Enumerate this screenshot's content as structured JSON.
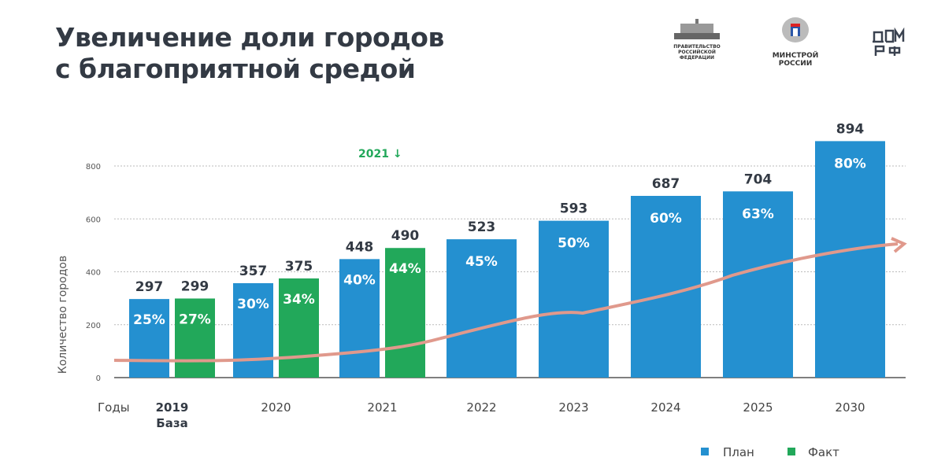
{
  "title_line1": "Увеличение доли городов",
  "title_line2": "с благоприятной средой",
  "logos": {
    "gov": "ПРАВИТЕЛЬСТВО РОССИЙСКОЙ ФЕДЕРАЦИИ",
    "minstroy_1": "МИНСТРОЙ",
    "minstroy_2": "РОССИИ",
    "domrf": "ДОМ РФ"
  },
  "colors": {
    "plan": "#2490d0",
    "fact": "#22a85a",
    "trend": "#e0998c",
    "highlight": "#22a85a"
  },
  "chart_data": {
    "type": "bar",
    "ylabel": "Количество городов",
    "xlabel": "Годы",
    "ylim": [
      0,
      800
    ],
    "yticks": [
      0,
      200,
      400,
      600,
      800
    ],
    "grid": true,
    "legend_position": "bottom-right",
    "annotation": "2021 ↓",
    "categories": [
      {
        "label": "2019",
        "sublabel": "База",
        "bold": true,
        "plan": 297,
        "plan_pct": "25%",
        "fact": 299,
        "fact_pct": "27%"
      },
      {
        "label": "2020",
        "plan": 357,
        "plan_pct": "30%",
        "fact": 375,
        "fact_pct": "34%"
      },
      {
        "label": "2021",
        "plan": 448,
        "plan_pct": "40%",
        "fact": 490,
        "fact_pct": "44%"
      },
      {
        "label": "2022",
        "plan": 523,
        "plan_pct": "45%"
      },
      {
        "label": "2023",
        "plan": 593,
        "plan_pct": "50%"
      },
      {
        "label": "2024",
        "plan": 687,
        "plan_pct": "60%"
      },
      {
        "label": "2025",
        "plan": 704,
        "plan_pct": "63%"
      },
      {
        "label": "2030",
        "plan": 894,
        "plan_pct": "80%"
      }
    ],
    "series": [
      {
        "name": "План",
        "key": "plan"
      },
      {
        "name": "Факт",
        "key": "fact"
      }
    ]
  }
}
